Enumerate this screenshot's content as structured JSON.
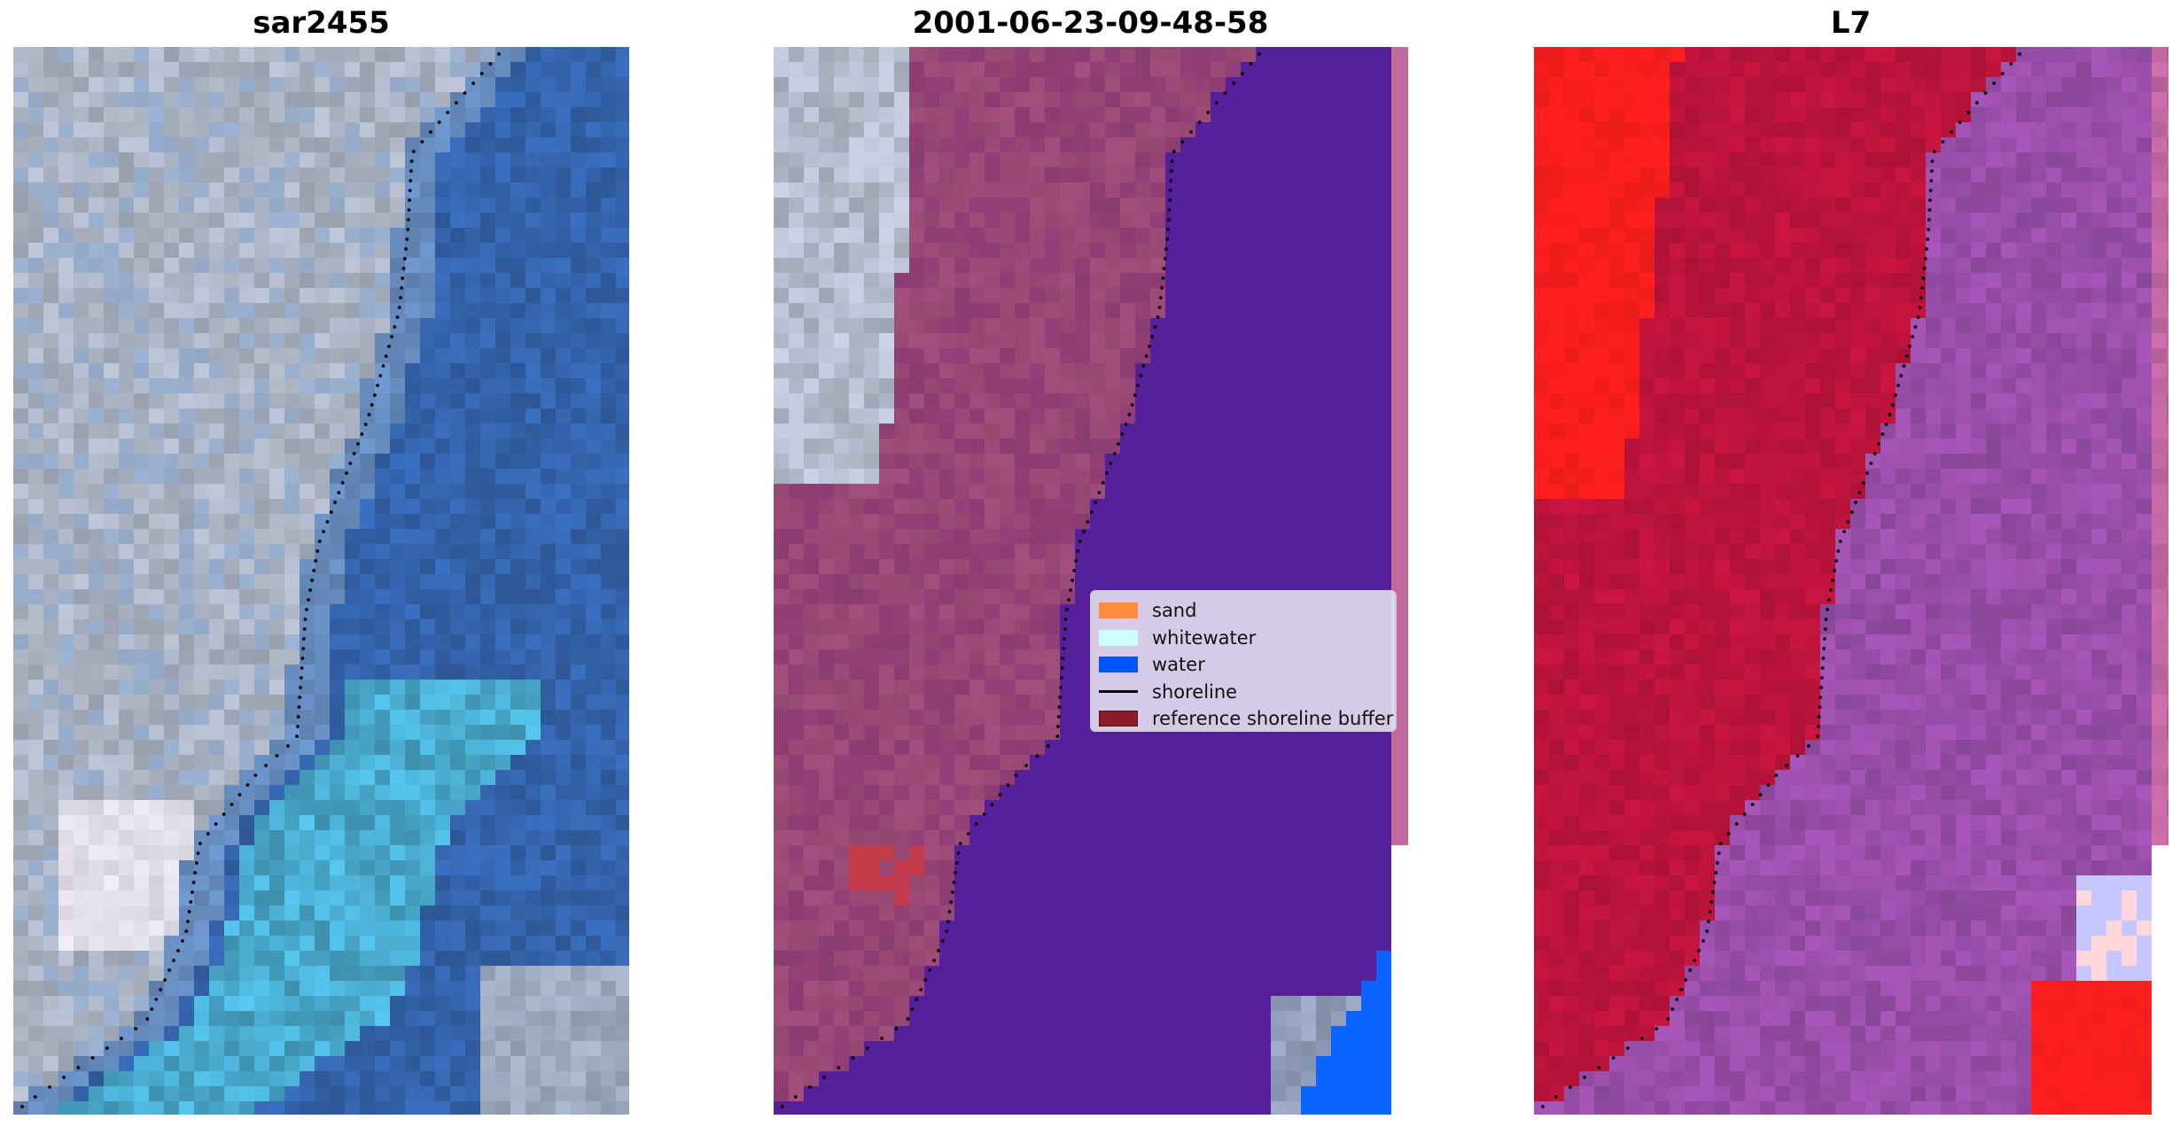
{
  "panels": [
    {
      "id": "rgb",
      "title": "sar2455"
    },
    {
      "id": "classified",
      "title": "2001-06-23-09-48-58"
    },
    {
      "id": "index",
      "title": "L7"
    }
  ],
  "legend": {
    "items": [
      {
        "label": "sand",
        "kind": "patch",
        "color": "#ff8c3c"
      },
      {
        "label": "whitewater",
        "kind": "patch",
        "color": "#ccffff"
      },
      {
        "label": "water",
        "kind": "patch",
        "color": "#0055ff"
      },
      {
        "label": "shoreline",
        "kind": "line",
        "color": "#000000"
      },
      {
        "label": "reference shoreline buffer",
        "kind": "patch",
        "color": "#8b1a2b"
      }
    ]
  },
  "colors": {
    "water_class": "#55209a",
    "land_overlay": "#a6507f",
    "land_dark": "#8c3d72",
    "sand_pixels": "#c23c4c",
    "bright_water": "#0b63ff",
    "index_land": "#c0143c",
    "index_water": "#9c50ad",
    "index_bright_red": "#ff1e1e",
    "rgb_land": "#b9c1d2",
    "rgb_water": "#3566b0",
    "rgb_shallow": "#52bfe6",
    "shoreline_dots": "#000000"
  }
}
